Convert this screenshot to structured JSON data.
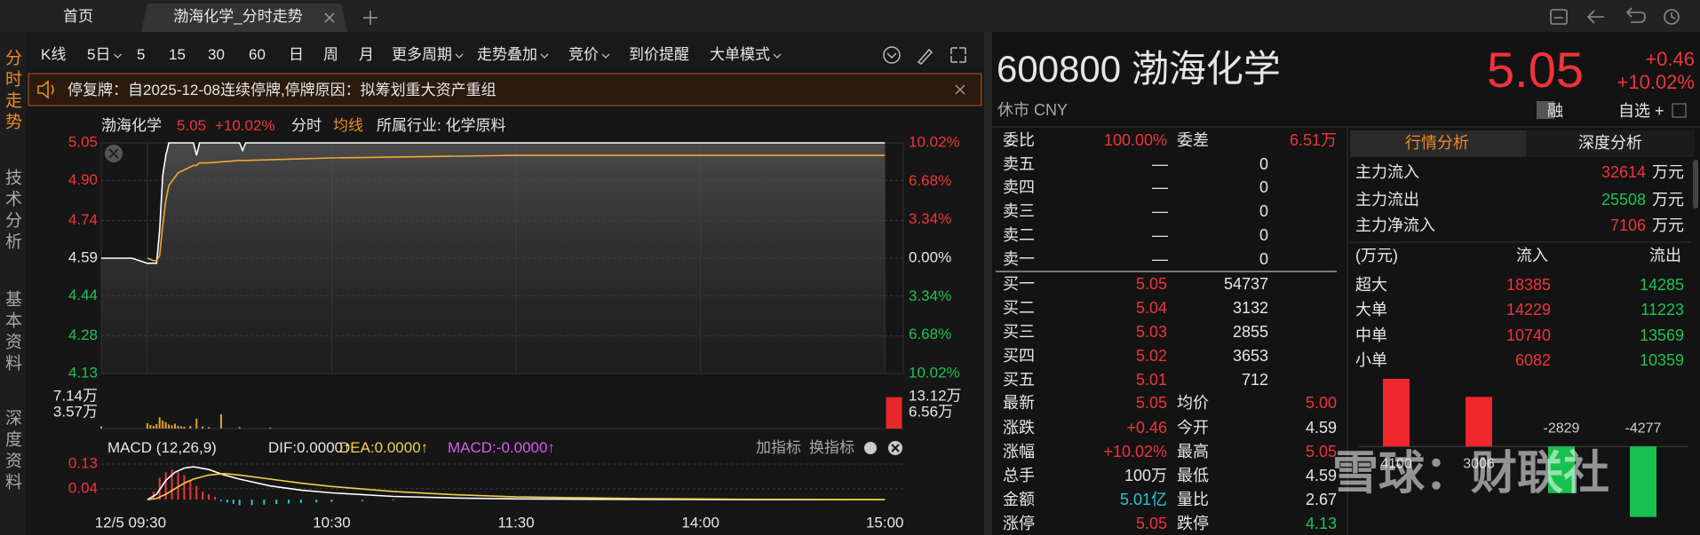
{
  "tabs": [
    "首页",
    "渤海化学_分时走势"
  ],
  "sidebar": [
    "分时走势",
    "技术分析",
    "基本资料",
    "深度资料"
  ],
  "toolbar": [
    "K线",
    "5日",
    "5",
    "15",
    "30",
    "60",
    "日",
    "周",
    "月",
    "更多周期",
    "走势叠加",
    "竞价",
    "到价提醒",
    "大单模式"
  ],
  "notice": "停复牌：自2025-12-08连续停牌,停牌原因：拟筹划重大资产重组",
  "chart_header": {
    "name": "渤海化学",
    "price": "5.05",
    "change_pct": "+10.02%",
    "industry": "所属行业: 化学原料"
  },
  "macd_tools": [
    "加指标",
    "换指标"
  ],
  "quote": {
    "code_name": "600800 渤海化学",
    "status": "休市 CNY",
    "price": "5.05",
    "change": "+0.46",
    "change_pct": "+10.02%",
    "margin": "融",
    "watchlist": "自选 +"
  },
  "order_book": {
    "ratio": [
      "委比",
      "100.00%",
      "委差",
      "6.51万"
    ],
    "asks": [
      [
        "卖五",
        "—",
        "0"
      ],
      [
        "卖四",
        "—",
        "0"
      ],
      [
        "卖三",
        "—",
        "0"
      ],
      [
        "卖二",
        "—",
        "0"
      ],
      [
        "卖一",
        "—",
        "0"
      ]
    ],
    "bids": [
      [
        "买一",
        "5.05",
        "54737"
      ],
      [
        "买二",
        "5.04",
        "3132"
      ],
      [
        "买三",
        "5.03",
        "2855"
      ],
      [
        "买四",
        "5.02",
        "3653"
      ],
      [
        "买五",
        "5.01",
        "712"
      ]
    ],
    "stats": [
      [
        "最新",
        "5.05",
        "均价",
        "5.00"
      ],
      [
        "涨跌",
        "+0.46",
        "今开",
        "4.59"
      ],
      [
        "涨幅",
        "+10.02%",
        "最高",
        "5.05"
      ],
      [
        "总手",
        "100万",
        "最低",
        "4.59"
      ],
      [
        "金额",
        "5.01亿",
        "量比",
        "2.67"
      ],
      [
        "涨停",
        "5.05",
        "跌停",
        "4.13"
      ]
    ]
  },
  "flow": {
    "tabs": [
      "行情分析",
      "深度分析"
    ],
    "main": [
      [
        "主力流入",
        "32614",
        "万元"
      ],
      [
        "主力流出",
        "25508",
        "万元"
      ],
      [
        "主力净流入",
        "7106",
        "万元"
      ]
    ],
    "header": [
      "(万元)",
      "流入",
      "流出"
    ],
    "rows": [
      [
        "超大",
        "18385",
        "14285"
      ],
      [
        "大单",
        "14229",
        "11223"
      ],
      [
        "中单",
        "10740",
        "13569"
      ],
      [
        "小单",
        "6082",
        "10359"
      ]
    ]
  },
  "watermark": "雪球：财联社",
  "chart_data": [
    {
      "type": "line",
      "x": [
        -15,
        -5,
        0,
        2,
        3,
        4,
        5,
        6,
        7,
        10,
        15,
        16,
        17,
        20,
        30,
        31,
        32,
        60,
        120,
        180,
        240
      ],
      "series": [
        {
          "name": "分时",
          "color": "#ffffff",
          "values": [
            4.59,
            4.59,
            4.57,
            4.57,
            4.57,
            4.7,
            4.92,
            5.0,
            5.05,
            5.05,
            5.05,
            5.0,
            5.05,
            5.05,
            5.05,
            5.02,
            5.05,
            5.05,
            5.05,
            5.05,
            5.05
          ]
        },
        {
          "name": "均线",
          "color": "#f0a830",
          "values": [
            null,
            null,
            4.59,
            4.58,
            4.58,
            4.6,
            4.72,
            4.82,
            4.88,
            4.93,
            4.96,
            4.96,
            4.97,
            4.97,
            4.98,
            4.98,
            4.98,
            4.99,
            5.0,
            5.0,
            5.0
          ]
        }
      ],
      "xlim": [
        -15,
        246
      ],
      "xticks": [
        {
          "value": 0,
          "label": "12/5 09:30"
        },
        {
          "value": 60,
          "label": "10:30"
        },
        {
          "value": 120,
          "label": "11:30"
        },
        {
          "value": 180,
          "label": "14:00"
        },
        {
          "value": 240,
          "label": "15:00"
        }
      ],
      "ylim": [
        4.13,
        5.05
      ],
      "yticks": [
        5.05,
        {
          "value": 4.9,
          "label": "4.90"
        },
        4.74,
        4.59,
        4.44,
        4.28,
        4.13
      ],
      "y2lim": [
        -10.02,
        10.02
      ],
      "y2ticks": [
        {
          "value": 10.02,
          "label": "10.02%"
        },
        {
          "value": 6.68,
          "label": "6.68%"
        },
        {
          "value": 3.34,
          "label": "3.34%"
        },
        {
          "value": 0,
          "label": "0.00%"
        },
        {
          "value": -3.34,
          "label": "3.34%"
        },
        {
          "value": -6.68,
          "label": "6.68%"
        },
        {
          "value": -10.02,
          "label": "10.02%"
        }
      ],
      "grid": true
    },
    {
      "type": "bar",
      "x": [
        -15,
        0,
        1,
        2,
        3,
        4,
        5,
        6,
        7,
        8,
        9,
        10,
        11,
        12,
        14,
        16,
        18,
        20,
        24,
        30,
        40
      ],
      "values": [
        0.5,
        1.2,
        0.8,
        0.6,
        1.0,
        2.5,
        1.8,
        1.4,
        0.9,
        0.7,
        1.1,
        0.6,
        0.5,
        0.4,
        0.6,
        2.2,
        0.5,
        0.3,
        3.2,
        0.3,
        0.2
      ],
      "color": "#e0a526",
      "ylim": [
        0,
        7.14
      ],
      "yticks": [
        {
          "value": 7.14,
          "label": "7.14万"
        },
        {
          "value": 3.57,
          "label": "3.57万"
        }
      ],
      "y2lim": [
        0,
        13.12
      ],
      "y2ticks": [
        {
          "value": 13.12,
          "label": "13.12万"
        },
        {
          "value": 6.56,
          "label": "6.56万"
        }
      ],
      "closing": {
        "x": 243,
        "value": 12.9,
        "axis": "y2",
        "color": "#e8262d"
      }
    },
    {
      "type": "line",
      "title": "MACD (12,26,9)",
      "x": [
        0,
        3,
        6,
        9,
        12,
        15,
        20,
        25,
        30,
        40,
        50,
        60,
        80,
        100,
        120,
        160,
        200,
        240
      ],
      "series": [
        {
          "name": "DIF:0.0000↑",
          "color": "#ffffff",
          "values": [
            0,
            0.02,
            0.07,
            0.1,
            0.115,
            0.12,
            0.11,
            0.09,
            0.075,
            0.05,
            0.035,
            0.025,
            0.012,
            0.006,
            0.003,
            0.001,
            0.0,
            0.0
          ]
        },
        {
          "name": "DEA:0.0000↑",
          "color": "#f2d14b",
          "values": [
            0,
            0.004,
            0.02,
            0.04,
            0.06,
            0.075,
            0.09,
            0.095,
            0.09,
            0.075,
            0.06,
            0.048,
            0.03,
            0.018,
            0.01,
            0.004,
            0.001,
            0.0
          ]
        }
      ],
      "bars": {
        "name": "MACD:-0.0000↑",
        "color": "#d65cf0",
        "x": [
          2,
          4,
          6,
          8,
          10,
          12,
          14,
          16,
          18,
          20,
          22,
          24,
          26,
          28,
          30,
          34,
          38,
          42,
          46,
          50,
          55,
          60,
          70,
          80
        ],
        "values": [
          0.03,
          0.08,
          0.1,
          0.11,
          0.1,
          0.09,
          0.07,
          0.05,
          0.03,
          0.02,
          0.01,
          -0.005,
          -0.01,
          -0.015,
          -0.02,
          -0.02,
          -0.018,
          -0.016,
          -0.014,
          -0.012,
          -0.01,
          -0.008,
          -0.005,
          -0.003
        ]
      },
      "ylim": [
        -0.035,
        0.13
      ],
      "yticks": [
        0.13,
        0.04
      ]
    },
    {
      "type": "bar",
      "values": [
        4100,
        3006,
        -2829,
        -4277
      ],
      "colors": [
        "#f0262d",
        "#f0262d",
        "#18c04f",
        "#18c04f"
      ],
      "ylim": [
        -4400,
        4100
      ]
    }
  ]
}
